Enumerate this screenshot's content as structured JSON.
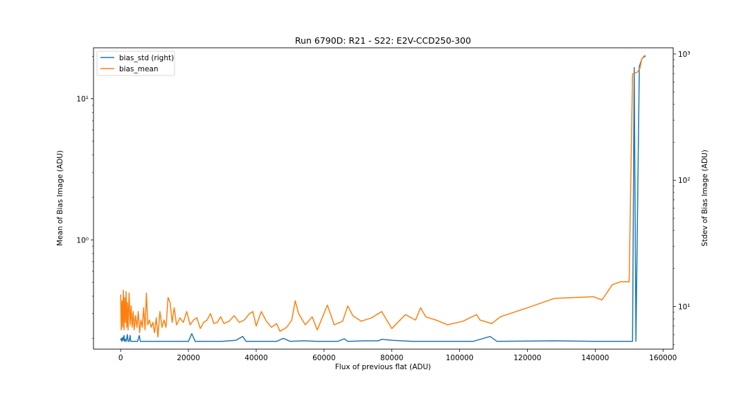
{
  "chart_data": {
    "type": "line",
    "title": "Run 6790D: R21 - S22: E2V-CCD250-300",
    "xlabel": "Flux of previous flat (ADU)",
    "ylabel_left": "Mean of Bias Image (ADU)",
    "ylabel_right": "Stdev of Bias Image (ADU)",
    "xlim": [
      -8000,
      163000
    ],
    "ylim_left": [
      0.168,
      23.0
    ],
    "ylim_right": [
      4.6,
      1120
    ],
    "yscale_left": "log",
    "yscale_right": "log",
    "grid": false,
    "legend_position": "top-left",
    "x_ticks": [
      0,
      20000,
      40000,
      60000,
      80000,
      100000,
      120000,
      140000,
      160000
    ],
    "x_tick_labels": [
      "0",
      "20000",
      "40000",
      "60000",
      "80000",
      "100000",
      "120000",
      "140000",
      "160000"
    ],
    "y_left_ticks": [
      1,
      10
    ],
    "y_left_tick_labels": [
      "10⁰",
      "10¹"
    ],
    "y_right_ticks": [
      10,
      100,
      1000
    ],
    "y_right_tick_labels": [
      "10¹",
      "10²",
      "10³"
    ],
    "series": [
      {
        "name": "bias_std (right)",
        "axis": "right",
        "color": "#1f77b4",
        "points": [
          [
            0,
            5.4
          ],
          [
            200,
            5.6
          ],
          [
            400,
            5.3
          ],
          [
            600,
            5.7
          ],
          [
            800,
            5.4
          ],
          [
            1000,
            5.9
          ],
          [
            1200,
            5.3
          ],
          [
            1400,
            5.5
          ],
          [
            1600,
            5.3
          ],
          [
            1800,
            5.6
          ],
          [
            2000,
            6.0
          ],
          [
            2200,
            5.3
          ],
          [
            2500,
            5.3
          ],
          [
            2800,
            5.9
          ],
          [
            3000,
            5.3
          ],
          [
            3500,
            5.3
          ],
          [
            5000,
            5.3
          ],
          [
            5500,
            5.9
          ],
          [
            5800,
            5.3
          ],
          [
            10000,
            5.3
          ],
          [
            15000,
            5.3
          ],
          [
            20000,
            5.3
          ],
          [
            21000,
            6.1
          ],
          [
            22000,
            5.3
          ],
          [
            30000,
            5.3
          ],
          [
            34000,
            5.4
          ],
          [
            36000,
            5.8
          ],
          [
            37000,
            5.3
          ],
          [
            40000,
            5.3
          ],
          [
            46000,
            5.3
          ],
          [
            48000,
            5.6
          ],
          [
            50000,
            5.3
          ],
          [
            54000,
            5.35
          ],
          [
            58000,
            5.3
          ],
          [
            64000,
            5.3
          ],
          [
            66000,
            5.55
          ],
          [
            67000,
            5.3
          ],
          [
            72000,
            5.35
          ],
          [
            76000,
            5.35
          ],
          [
            77000,
            5.5
          ],
          [
            80000,
            5.4
          ],
          [
            86000,
            5.3
          ],
          [
            96000,
            5.3
          ],
          [
            104000,
            5.3
          ],
          [
            109000,
            5.8
          ],
          [
            111000,
            5.3
          ],
          [
            128000,
            5.35
          ],
          [
            140000,
            5.3
          ],
          [
            150000,
            5.3
          ],
          [
            151000,
            5.3
          ],
          [
            151500,
            780
          ],
          [
            152000,
            5.3
          ],
          [
            153000,
            800
          ],
          [
            153800,
            920
          ],
          [
            154600,
            960
          ],
          [
            154800,
            950
          ]
        ]
      },
      {
        "name": "bias_mean",
        "axis": "left",
        "color": "#ff7f0e",
        "points": [
          [
            0,
            0.41
          ],
          [
            200,
            0.23
          ],
          [
            400,
            0.37
          ],
          [
            600,
            0.24
          ],
          [
            800,
            0.44
          ],
          [
            1000,
            0.23
          ],
          [
            1200,
            0.39
          ],
          [
            1400,
            0.26
          ],
          [
            1600,
            0.43
          ],
          [
            1800,
            0.24
          ],
          [
            2000,
            0.36
          ],
          [
            2200,
            0.23
          ],
          [
            2500,
            0.42
          ],
          [
            2800,
            0.25
          ],
          [
            3100,
            0.34
          ],
          [
            3400,
            0.24
          ],
          [
            3700,
            0.31
          ],
          [
            4000,
            0.23
          ],
          [
            4400,
            0.29
          ],
          [
            4800,
            0.24
          ],
          [
            5200,
            0.31
          ],
          [
            5600,
            0.22
          ],
          [
            6000,
            0.27
          ],
          [
            6400,
            0.24
          ],
          [
            6800,
            0.33
          ],
          [
            7200,
            0.23
          ],
          [
            7600,
            0.42
          ],
          [
            8000,
            0.25
          ],
          [
            8500,
            0.27
          ],
          [
            9000,
            0.24
          ],
          [
            9500,
            0.26
          ],
          [
            10000,
            0.22
          ],
          [
            10500,
            0.28
          ],
          [
            11000,
            0.205
          ],
          [
            11600,
            0.31
          ],
          [
            12200,
            0.24
          ],
          [
            12800,
            0.27
          ],
          [
            13400,
            0.24
          ],
          [
            14000,
            0.39
          ],
          [
            14600,
            0.36
          ],
          [
            15200,
            0.26
          ],
          [
            15800,
            0.33
          ],
          [
            16500,
            0.25
          ],
          [
            17500,
            0.28
          ],
          [
            18500,
            0.26
          ],
          [
            19500,
            0.31
          ],
          [
            20500,
            0.25
          ],
          [
            21500,
            0.27
          ],
          [
            22500,
            0.28
          ],
          [
            23500,
            0.235
          ],
          [
            24500,
            0.26
          ],
          [
            25500,
            0.27
          ],
          [
            26500,
            0.3
          ],
          [
            27500,
            0.255
          ],
          [
            28500,
            0.26
          ],
          [
            29500,
            0.285
          ],
          [
            30500,
            0.255
          ],
          [
            32000,
            0.265
          ],
          [
            33500,
            0.29
          ],
          [
            35000,
            0.26
          ],
          [
            36500,
            0.27
          ],
          [
            38000,
            0.3
          ],
          [
            39000,
            0.31
          ],
          [
            40000,
            0.245
          ],
          [
            41500,
            0.31
          ],
          [
            43000,
            0.265
          ],
          [
            44500,
            0.24
          ],
          [
            46000,
            0.255
          ],
          [
            47000,
            0.225
          ],
          [
            49000,
            0.24
          ],
          [
            50500,
            0.27
          ],
          [
            51500,
            0.37
          ],
          [
            52500,
            0.3
          ],
          [
            54500,
            0.25
          ],
          [
            56500,
            0.285
          ],
          [
            58000,
            0.23
          ],
          [
            61000,
            0.345
          ],
          [
            63000,
            0.25
          ],
          [
            65500,
            0.265
          ],
          [
            67000,
            0.34
          ],
          [
            68500,
            0.29
          ],
          [
            71000,
            0.265
          ],
          [
            74000,
            0.28
          ],
          [
            77000,
            0.31
          ],
          [
            80000,
            0.235
          ],
          [
            84000,
            0.295
          ],
          [
            87000,
            0.27
          ],
          [
            88500,
            0.33
          ],
          [
            90000,
            0.285
          ],
          [
            93000,
            0.27
          ],
          [
            96500,
            0.25
          ],
          [
            101000,
            0.265
          ],
          [
            105000,
            0.295
          ],
          [
            106000,
            0.27
          ],
          [
            109500,
            0.255
          ],
          [
            112000,
            0.285
          ],
          [
            120000,
            0.33
          ],
          [
            128000,
            0.385
          ],
          [
            139500,
            0.395
          ],
          [
            142000,
            0.375
          ],
          [
            145000,
            0.48
          ],
          [
            147500,
            0.505
          ],
          [
            149500,
            0.505
          ],
          [
            150000,
            0.505
          ],
          [
            151000,
            15
          ],
          [
            152500,
            15.5
          ],
          [
            153200,
            16.5
          ],
          [
            153700,
            19
          ],
          [
            154300,
            20
          ],
          [
            154800,
            20.4
          ]
        ]
      }
    ]
  }
}
